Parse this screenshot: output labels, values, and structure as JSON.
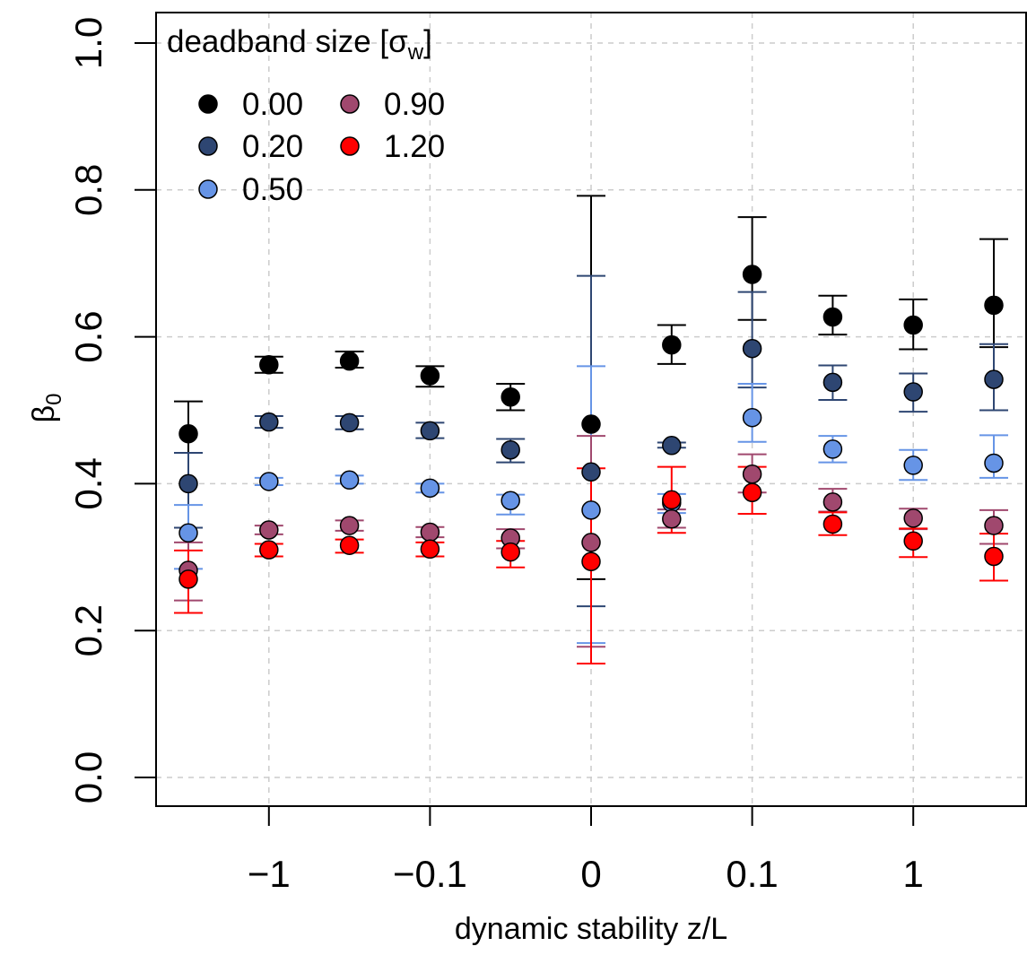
{
  "chart_data": {
    "type": "scatter",
    "xlabel": "dynamic stability z/L",
    "ylabel": "β",
    "ylabel_sub": "0",
    "ylim": [
      0.0,
      1.0
    ],
    "yticks": [
      "0.0",
      "0.2",
      "0.4",
      "0.6",
      "0.8",
      "1.0"
    ],
    "xtick_labels": [
      "−1",
      "−0.1",
      "0",
      "0.1",
      "1"
    ],
    "grid": true,
    "legend": {
      "placement": "top-left",
      "title": "deadband size [σ",
      "title_sub": "w",
      "title_close": "]"
    },
    "series": [
      {
        "name": "0.00",
        "color": "#000000",
        "values": [
          0.468,
          0.562,
          0.567,
          0.547,
          0.518,
          0.481,
          0.589,
          0.685,
          0.627,
          0.616,
          0.643
        ],
        "err_low": [
          0.34,
          0.551,
          0.558,
          0.532,
          0.5,
          0.27,
          0.563,
          0.623,
          0.603,
          0.583,
          0.586
        ],
        "err_high": [
          0.512,
          0.573,
          0.58,
          0.56,
          0.536,
          0.792,
          0.616,
          0.763,
          0.656,
          0.651,
          0.733
        ]
      },
      {
        "name": "0.20",
        "color": "#2e4672",
        "values": [
          0.4,
          0.484,
          0.483,
          0.472,
          0.446,
          0.416,
          0.452,
          0.584,
          0.538,
          0.525,
          0.542
        ],
        "err_low": [
          0.34,
          0.476,
          0.474,
          0.462,
          0.429,
          0.233,
          0.449,
          0.531,
          0.514,
          0.498,
          0.5
        ],
        "err_high": [
          0.442,
          0.492,
          0.492,
          0.483,
          0.461,
          0.683,
          0.456,
          0.661,
          0.561,
          0.55,
          0.59
        ]
      },
      {
        "name": "0.50",
        "color": "#6694e6",
        "values": [
          0.333,
          0.403,
          0.405,
          0.394,
          0.377,
          0.364,
          0.374,
          0.49,
          0.447,
          0.425,
          0.428
        ],
        "err_low": [
          0.284,
          0.398,
          0.4,
          0.388,
          0.358,
          0.183,
          0.36,
          0.457,
          0.429,
          0.405,
          0.408
        ],
        "err_high": [
          0.371,
          0.408,
          0.411,
          0.4,
          0.385,
          0.56,
          0.386,
          0.536,
          0.465,
          0.446,
          0.466
        ]
      },
      {
        "name": "0.90",
        "color": "#a0486e",
        "values": [
          0.282,
          0.337,
          0.343,
          0.334,
          0.326,
          0.32,
          0.352,
          0.413,
          0.375,
          0.353,
          0.343
        ],
        "err_low": [
          0.241,
          0.331,
          0.336,
          0.327,
          0.312,
          0.178,
          0.34,
          0.388,
          0.362,
          0.338,
          0.318
        ],
        "err_high": [
          0.32,
          0.343,
          0.35,
          0.341,
          0.338,
          0.465,
          0.365,
          0.44,
          0.393,
          0.366,
          0.364
        ]
      },
      {
        "name": "1.20",
        "color": "#ff0000",
        "values": [
          0.27,
          0.31,
          0.316,
          0.311,
          0.307,
          0.294,
          0.378,
          0.388,
          0.345,
          0.322,
          0.301
        ],
        "err_low": [
          0.224,
          0.301,
          0.306,
          0.301,
          0.286,
          0.155,
          0.333,
          0.359,
          0.33,
          0.3,
          0.268
        ],
        "err_high": [
          0.309,
          0.318,
          0.324,
          0.32,
          0.322,
          0.421,
          0.423,
          0.423,
          0.361,
          0.339,
          0.332
        ]
      }
    ]
  }
}
